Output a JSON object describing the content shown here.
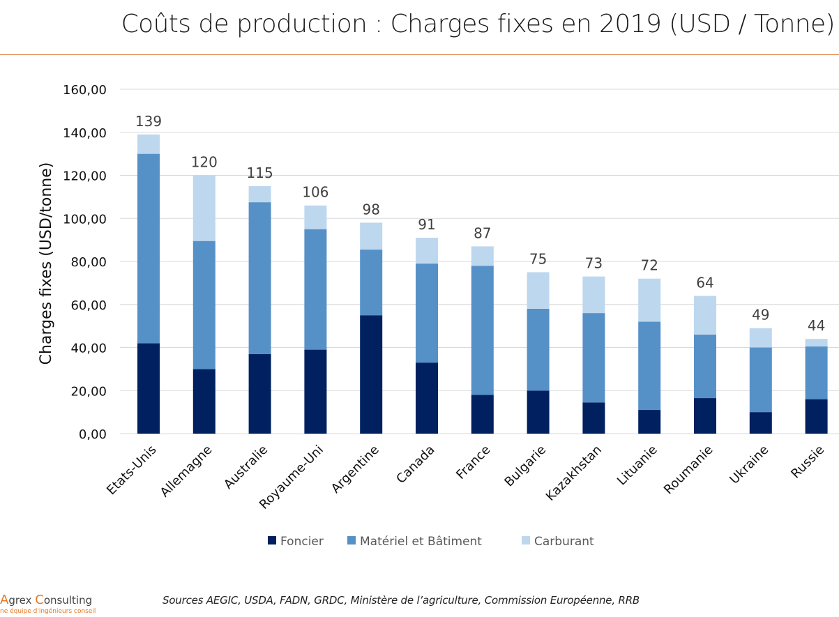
{
  "page": {
    "title": "Coûts de production : Charges fixes en 2019 (USD / Tonne)",
    "logo": {
      "first_letter": "A",
      "rest1": "grex ",
      "second_letter": "C",
      "rest2": "onsulting",
      "tagline": "ne équipe d'ingénieurs conseil"
    },
    "sources": "Sources  AEGIC, USDA, FADN, GRDC, Ministère de l’agriculture, Commission Européenne, RRB"
  },
  "chart_data": {
    "type": "bar",
    "stacked": true,
    "title": "Coûts de production : Charges fixes en 2019 (USD / Tonne)",
    "xlabel": "",
    "ylabel": "Charges fixes (USD/tonne)",
    "ylim": [
      0,
      160
    ],
    "yticks": [
      0,
      20,
      40,
      60,
      80,
      100,
      120,
      140,
      160
    ],
    "ytick_labels": [
      "0,00",
      "20,00",
      "40,00",
      "60,00",
      "80,00",
      "100,00",
      "120,00",
      "140,00",
      "160,00"
    ],
    "grid": true,
    "legend_position": "bottom",
    "categories": [
      "Etats-Unis",
      "Allemagne",
      "Australie",
      "Royaume-Uni",
      "Argentine",
      "Canada",
      "France",
      "Bulgarie",
      "Kazakhstan",
      "Lituanie",
      "Roumanie",
      "Ukraine",
      "Russie"
    ],
    "series": [
      {
        "name": "Foncier",
        "color": "#002060",
        "values": [
          42,
          30,
          37,
          39,
          55,
          33,
          18,
          20,
          14.5,
          11,
          16.5,
          10,
          16
        ]
      },
      {
        "name": "Matériel et Bâtiment",
        "color": "#5591c7",
        "values": [
          88,
          59.5,
          70.5,
          56,
          30.5,
          46,
          60,
          38,
          41.5,
          41,
          29.5,
          30,
          24.5
        ]
      },
      {
        "name": "Carburant",
        "color": "#bdd7ee",
        "values": [
          9,
          30.5,
          7.5,
          11,
          12.5,
          12,
          9,
          17,
          17,
          20,
          18,
          9,
          3.5
        ]
      }
    ],
    "total_labels": [
      "139",
      "120",
      "115",
      "106",
      "98",
      "91",
      "87",
      "75",
      "73",
      "72",
      "64",
      "49",
      "44"
    ]
  }
}
